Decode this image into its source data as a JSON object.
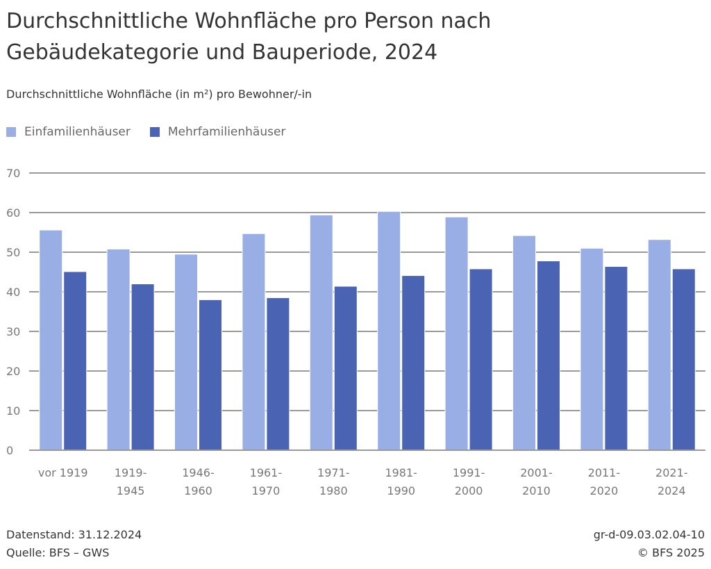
{
  "title_line1": "Durchschnittliche Wohnfläche pro Person nach",
  "title_line2": "Gebäudekategorie und Bauperiode, 2024",
  "footer": {
    "datenstand": "Datenstand: 31.12.2024",
    "quelle": "Quelle: BFS – GWS",
    "code": "gr-d-09.03.02.04-10",
    "copyright": "© BFS 2025"
  },
  "chart_data": {
    "type": "bar",
    "title": "Durchschnittliche Wohnfläche pro Person nach Gebäudekategorie und Bauperiode, 2024",
    "subtitle": "Durchschnittliche Wohnfläche (in m²) pro Bewohner/-in",
    "categories": [
      [
        "vor 1919"
      ],
      [
        "1919-",
        "1945"
      ],
      [
        "1946-",
        "1960"
      ],
      [
        "1961-",
        "1970"
      ],
      [
        "1971-",
        "1980"
      ],
      [
        "1981-",
        "1990"
      ],
      [
        "1991-",
        "2000"
      ],
      [
        "2001-",
        "2010"
      ],
      [
        "2011-",
        "2020"
      ],
      [
        "2021-",
        "2024"
      ]
    ],
    "series": [
      {
        "name": "Einfamilienhäuser",
        "color": "#9aaee6",
        "values": [
          55.6,
          50.8,
          49.5,
          54.7,
          59.4,
          60.3,
          58.9,
          54.2,
          51.0,
          53.2
        ]
      },
      {
        "name": "Mehrfamilienhäuser",
        "color": "#4a63b3",
        "values": [
          45.1,
          42.0,
          38.0,
          38.5,
          41.4,
          44.1,
          45.8,
          47.8,
          46.4,
          45.8
        ]
      }
    ],
    "ylim": [
      0,
      70
    ],
    "yticks": [
      0,
      10,
      20,
      30,
      40,
      50,
      60,
      70
    ],
    "grid": true,
    "legend_placement": "top-left"
  }
}
